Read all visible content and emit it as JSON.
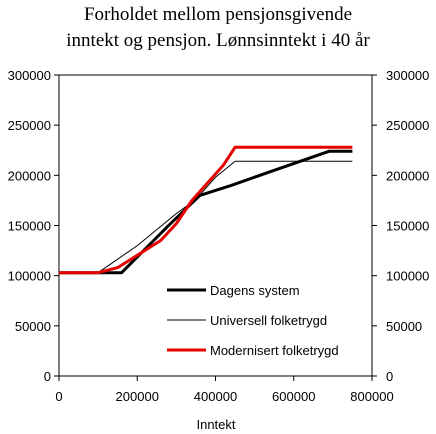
{
  "chart_data": {
    "type": "line",
    "title_line1": "Forholdet mellom pensjonsgivende",
    "title_line2": "inntekt og pensjon. Lønnsinntekt i 40 år",
    "xlabel": "Inntekt",
    "ylabel": "",
    "xlim": [
      0,
      800000
    ],
    "ylim": [
      0,
      300000
    ],
    "x_ticks": [
      "0",
      "200000",
      "400000",
      "600000",
      "800000"
    ],
    "y_ticks": [
      "0",
      "50000",
      "100000",
      "150000",
      "200000",
      "250000",
      "300000"
    ],
    "y_ticks_right": [
      "0",
      "50000",
      "100000",
      "150000",
      "200000",
      "250000",
      "300000"
    ],
    "grid": false,
    "legend_position": "bottom-right",
    "series": [
      {
        "name": "Dagens system",
        "color": "#000000",
        "x": [
          0,
          100000,
          160000,
          280000,
          360000,
          440000,
          550000,
          690000,
          750000
        ],
        "y": [
          103000,
          103000,
          103000,
          150000,
          180000,
          190000,
          205000,
          224000,
          224000
        ]
      },
      {
        "name": "Universell folketrygd",
        "color": "#000000",
        "x": [
          0,
          100000,
          200000,
          300000,
          350000,
          400000,
          450000,
          750000
        ],
        "y": [
          103000,
          103000,
          130000,
          162000,
          176000,
          198000,
          214000,
          214000
        ]
      },
      {
        "name": "Modernisert folketrygd",
        "color": "#e60000",
        "x": [
          0,
          100000,
          150000,
          260000,
          300000,
          340000,
          420000,
          450000,
          750000
        ],
        "y": [
          103000,
          103000,
          108000,
          135000,
          152000,
          175000,
          210000,
          228000,
          228000
        ]
      }
    ]
  }
}
